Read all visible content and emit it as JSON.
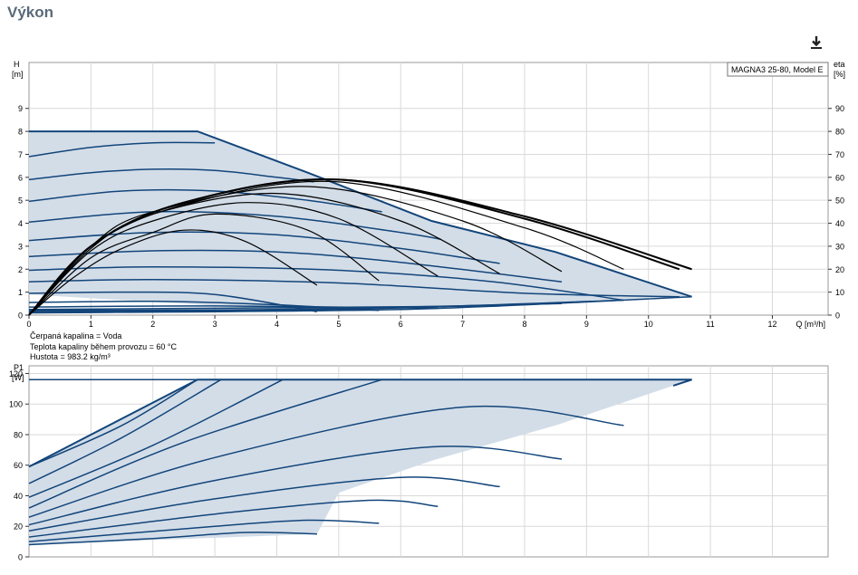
{
  "page": {
    "title": "Výkon"
  },
  "toolbar": {
    "download_icon": "download-icon"
  },
  "colors": {
    "envelope_fill": "#d3dde8",
    "curve_blue": "#12457a",
    "efficiency_black": "#000000",
    "grid": "#d9d9d9"
  },
  "chart_data": [
    {
      "type": "line",
      "name": "head",
      "legend_box": "MAGNA3 25-80, Model E",
      "xlabel": "Q [m³/h]",
      "ylabel_left": [
        "H",
        "[m]"
      ],
      "ylabel_right": [
        "eta",
        "[%]"
      ],
      "xlim": [
        0,
        12.9
      ],
      "ylim": [
        0,
        11
      ],
      "ylim_right": [
        0,
        110
      ],
      "x_ticks": [
        0,
        1,
        2,
        3,
        4,
        5,
        6,
        7,
        8,
        9,
        10,
        11,
        12
      ],
      "y_ticks": [
        0,
        1,
        2,
        3,
        4,
        5,
        6,
        7,
        8,
        9
      ],
      "y_ticks_right": [
        0,
        10,
        20,
        30,
        40,
        50,
        60,
        70,
        80,
        90
      ],
      "grid": true,
      "notes": [
        "Čerpaná kapalina = Voda",
        "Teplota kapaliny během provozu = 60 °C",
        "Hustota = 983.2 kg/m³"
      ],
      "envelope": [
        [
          0,
          8
        ],
        [
          2.72,
          8
        ],
        [
          4.5,
          6.2
        ],
        [
          6.5,
          4.1
        ],
        [
          8.5,
          2.75
        ],
        [
          10.7,
          0.8
        ],
        [
          9.6,
          0.65
        ],
        [
          8.6,
          0.5
        ],
        [
          7.6,
          0.4
        ],
        [
          6.6,
          0.3
        ],
        [
          5.65,
          0.2
        ],
        [
          4.65,
          0.15
        ],
        [
          0,
          0.9
        ]
      ],
      "series": [
        {
          "values": [
            [
              0,
              6.9
            ],
            [
              1.0,
              7.3
            ],
            [
              2.0,
              7.5
            ],
            [
              3.0,
              7.5
            ]
          ]
        },
        {
          "values": [
            [
              0,
              5.9
            ],
            [
              1.0,
              6.2
            ],
            [
              2.0,
              6.35
            ],
            [
              3.0,
              6.3
            ],
            [
              4.0,
              6.0
            ],
            [
              4.6,
              5.8
            ]
          ]
        },
        {
          "values": [
            [
              0,
              4.95
            ],
            [
              1.5,
              5.4
            ],
            [
              3.0,
              5.4
            ],
            [
              4.5,
              5.0
            ],
            [
              5.7,
              4.5
            ]
          ]
        },
        {
          "values": [
            [
              0,
              4.05
            ],
            [
              2.0,
              4.5
            ],
            [
              4.0,
              4.3
            ],
            [
              6.0,
              3.6
            ],
            [
              6.65,
              3.3
            ]
          ]
        },
        {
          "values": [
            [
              0,
              3.25
            ],
            [
              2.0,
              3.6
            ],
            [
              4.0,
              3.5
            ],
            [
              6.0,
              2.9
            ],
            [
              7.6,
              2.25
            ]
          ]
        },
        {
          "values": [
            [
              0,
              2.55
            ],
            [
              2.0,
              2.8
            ],
            [
              4.0,
              2.75
            ],
            [
              6.0,
              2.3
            ],
            [
              8.6,
              1.45
            ]
          ]
        },
        {
          "values": [
            [
              0,
              1.95
            ],
            [
              2.0,
              2.1
            ],
            [
              5.0,
              1.95
            ],
            [
              7.5,
              1.45
            ],
            [
              9.6,
              0.65
            ]
          ]
        },
        {
          "values": [
            [
              0,
              1.45
            ],
            [
              2.0,
              1.55
            ],
            [
              5.0,
              1.4
            ],
            [
              8.0,
              0.95
            ],
            [
              10.5,
              0.8
            ]
          ]
        },
        {
          "values": [
            [
              0,
              0.95
            ],
            [
              1.5,
              1.0
            ],
            [
              3.0,
              0.9
            ],
            [
              4.65,
              0.15
            ]
          ]
        },
        {
          "values": [
            [
              0,
              0.55
            ],
            [
              2.0,
              0.6
            ],
            [
              4.0,
              0.45
            ],
            [
              5.65,
              0.2
            ]
          ]
        },
        {
          "values": [
            [
              0,
              0.35
            ],
            [
              3.0,
              0.4
            ],
            [
              6.6,
              0.3
            ]
          ]
        },
        {
          "values": [
            [
              0,
              0.25
            ],
            [
              3.0,
              0.3
            ],
            [
              7.6,
              0.4
            ]
          ]
        },
        {
          "values": [
            [
              0,
              0.2
            ],
            [
              4.0,
              0.25
            ],
            [
              8.6,
              0.5
            ]
          ]
        },
        {
          "values": [
            [
              0,
              0.15
            ],
            [
              5.0,
              0.25
            ],
            [
              9.6,
              0.65
            ]
          ]
        },
        {
          "values": [
            [
              0,
              0.1
            ],
            [
              6.0,
              0.25
            ],
            [
              10.7,
              0.8
            ]
          ]
        }
      ],
      "efficiency_curves": [
        {
          "values": [
            [
              0,
              0
            ],
            [
              0.7,
              16
            ],
            [
              1.5,
              29
            ],
            [
              2.5,
              37
            ],
            [
              3.5,
              32
            ],
            [
              4.65,
              13
            ]
          ]
        },
        {
          "values": [
            [
              0,
              0
            ],
            [
              1.0,
              25
            ],
            [
              2.0,
              36
            ],
            [
              3.0,
              44
            ],
            [
              4.5,
              37
            ],
            [
              5.65,
              15
            ]
          ]
        },
        {
          "values": [
            [
              0,
              0
            ],
            [
              1.0,
              28
            ],
            [
              2.0,
              41
            ],
            [
              3.5,
              49
            ],
            [
              5.0,
              42
            ],
            [
              6.6,
              17
            ]
          ]
        },
        {
          "values": [
            [
              0,
              0
            ],
            [
              1.0,
              29
            ],
            [
              2.0,
              44
            ],
            [
              4.0,
              53
            ],
            [
              6.0,
              41
            ],
            [
              7.6,
              18
            ]
          ]
        },
        {
          "values": [
            [
              0,
              0
            ],
            [
              1.0,
              30
            ],
            [
              2.0,
              45
            ],
            [
              4.5,
              56
            ],
            [
              7.0,
              41
            ],
            [
              8.6,
              19
            ]
          ]
        },
        {
          "values": [
            [
              0,
              0
            ],
            [
              1.0,
              30
            ],
            [
              2.5,
              48
            ],
            [
              5.0,
              58
            ],
            [
              8.0,
              38
            ],
            [
              9.6,
              20
            ]
          ]
        },
        {
          "values": [
            [
              0,
              0
            ],
            [
              1.0,
              30
            ],
            [
              2.5,
              49
            ],
            [
              5.0,
              59
            ],
            [
              8.0,
              43
            ],
            [
              10.7,
              20
            ]
          ]
        },
        {
          "values": [
            [
              0,
              0
            ],
            [
              1.0,
              30
            ],
            [
              2.5,
              49
            ],
            [
              5.0,
              59
            ],
            [
              8.0,
              42
            ],
            [
              10.5,
              20
            ]
          ]
        }
      ]
    },
    {
      "type": "line",
      "name": "power",
      "xlabel": "",
      "ylabel_left": [
        "P1",
        "[W]"
      ],
      "xlim": [
        0,
        12.9
      ],
      "ylim": [
        0,
        125
      ],
      "y_ticks": [
        0,
        20,
        40,
        60,
        80,
        100,
        120
      ],
      "grid": true,
      "envelope": [
        [
          0,
          59
        ],
        [
          2.72,
          116
        ],
        [
          10.7,
          116
        ],
        [
          10.4,
          112
        ],
        [
          8.5,
          86
        ],
        [
          6.5,
          63
        ],
        [
          5.0,
          42
        ],
        [
          4.65,
          15
        ],
        [
          0,
          8
        ]
      ],
      "series": [
        {
          "values": [
            [
              0,
              59
            ],
            [
              1.5,
              86
            ],
            [
              2.72,
              116
            ]
          ]
        },
        {
          "values": [
            [
              0,
              48
            ],
            [
              1.5,
              78
            ],
            [
              3.1,
              116
            ]
          ]
        },
        {
          "values": [
            [
              0,
              39
            ],
            [
              2.0,
              73
            ],
            [
              4.1,
              116
            ]
          ]
        },
        {
          "values": [
            [
              0,
              32
            ],
            [
              2.5,
              75
            ],
            [
              5.7,
              116
            ]
          ]
        },
        {
          "values": [
            [
              0,
              26
            ],
            [
              3.0,
              65
            ],
            [
              7.0,
              98
            ],
            [
              9.6,
              86
            ]
          ]
        },
        {
          "values": [
            [
              0,
              21
            ],
            [
              3.0,
              50
            ],
            [
              6.5,
              72
            ],
            [
              8.6,
              64
            ]
          ]
        },
        {
          "values": [
            [
              0,
              17
            ],
            [
              3.0,
              38
            ],
            [
              6.0,
              52
            ],
            [
              7.6,
              46
            ]
          ]
        },
        {
          "values": [
            [
              0,
              13
            ],
            [
              3.0,
              28
            ],
            [
              5.5,
              37
            ],
            [
              6.6,
              33
            ]
          ]
        },
        {
          "values": [
            [
              0,
              10
            ],
            [
              3.0,
              20
            ],
            [
              4.5,
              24
            ],
            [
              5.65,
              22
            ]
          ]
        },
        {
          "values": [
            [
              0,
              8
            ],
            [
              2.0,
              12
            ],
            [
              3.5,
              16
            ],
            [
              4.65,
              15
            ]
          ]
        },
        {
          "values": [
            [
              0,
              116
            ],
            [
              10.7,
              116
            ]
          ]
        }
      ]
    }
  ]
}
